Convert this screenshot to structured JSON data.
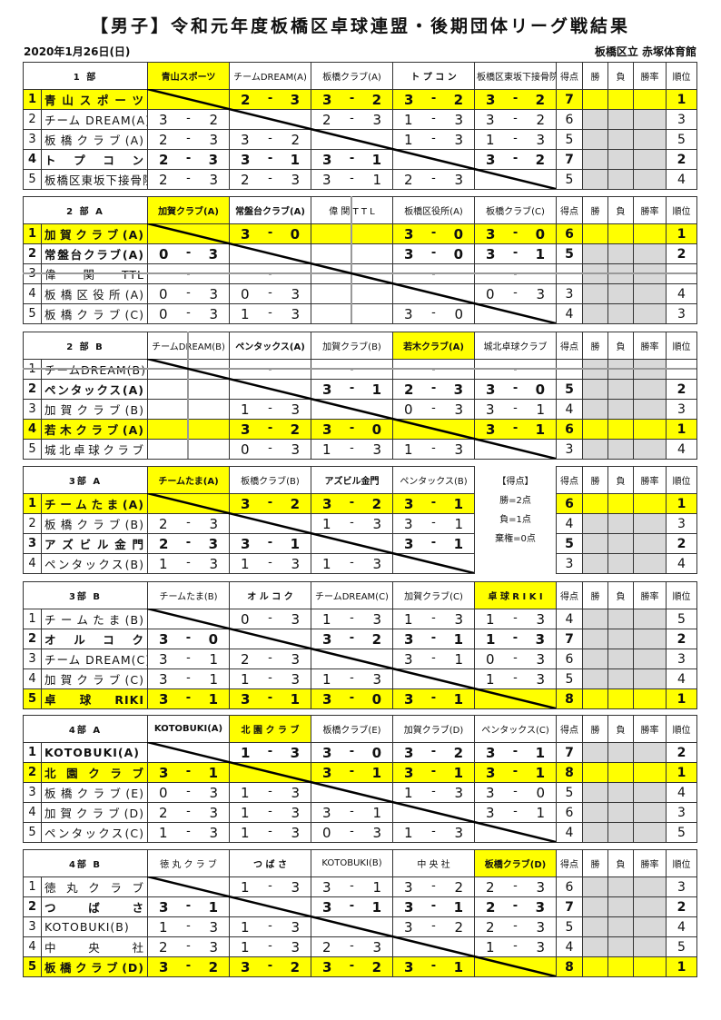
{
  "title": "【男子】令和元年度板橋区卓球連盟・後期団体リーグ戦結果",
  "date": "2020年1月26日(日)",
  "venue": "板橋区立 赤塚体育館",
  "score_separator": "-",
  "stat_headers": [
    "得点",
    "勝",
    "負",
    "勝率",
    "順位"
  ],
  "colors": {
    "highlight": "#ffff00",
    "gray_cell": "#d9d9d9",
    "strike_line": "#999999"
  },
  "legend": {
    "title": "【得点】",
    "lines": [
      "勝=2点",
      "負=1点",
      "棄権=0点"
    ]
  },
  "divisions": [
    {
      "title": "1 部",
      "headers": [
        "青山スポーツ",
        "チームDREAM(A)",
        "板橋クラブ(A)",
        "ト プ コ ン",
        "板橋区東坂下接骨院"
      ],
      "rows": [
        {
          "num": "1",
          "name": "青山スポーツ",
          "scores": [
            null,
            [
              2,
              3
            ],
            [
              3,
              2
            ],
            [
              3,
              2
            ],
            [
              3,
              2
            ]
          ],
          "points": "7",
          "rank": "1",
          "highlight": true,
          "bold": true
        },
        {
          "num": "2",
          "name": "チーム DREAM(A)",
          "scores": [
            [
              3,
              2
            ],
            null,
            [
              2,
              3
            ],
            [
              1,
              3
            ],
            [
              3,
              2
            ]
          ],
          "points": "6",
          "rank": "3"
        },
        {
          "num": "3",
          "name": "板橋クラブ(A)",
          "scores": [
            [
              2,
              3
            ],
            [
              3,
              2
            ],
            null,
            [
              1,
              3
            ],
            [
              1,
              3
            ]
          ],
          "points": "5",
          "rank": "5"
        },
        {
          "num": "4",
          "name": "トプコン",
          "scores": [
            [
              2,
              3
            ],
            [
              3,
              1
            ],
            [
              3,
              1
            ],
            null,
            [
              3,
              2
            ]
          ],
          "points": "7",
          "rank": "2",
          "bold": true
        },
        {
          "num": "5",
          "name": "板橋区東坂下接骨院",
          "scores": [
            [
              2,
              3
            ],
            [
              2,
              3
            ],
            [
              3,
              1
            ],
            [
              2,
              3
            ],
            null
          ],
          "points": "5",
          "rank": "4"
        }
      ]
    },
    {
      "title": "2 部 A",
      "headers": [
        "加賀クラブ(A)",
        "常盤台クラブ(A)",
        "偉 関 T T L",
        "板橋区役所(A)",
        "板橋クラブ(C)"
      ],
      "rows": [
        {
          "num": "1",
          "name": "加賀クラブ(A)",
          "scores": [
            null,
            [
              3,
              0
            ],
            "",
            [
              3,
              0
            ],
            [
              3,
              0
            ]
          ],
          "points": "6",
          "rank": "1",
          "highlight": true,
          "bold": true
        },
        {
          "num": "2",
          "name": "常盤台クラブ(A)",
          "scores": [
            [
              0,
              3
            ],
            null,
            "",
            [
              3,
              0
            ],
            [
              3,
              1
            ]
          ],
          "points": "5",
          "rank": "2",
          "bold": true
        },
        {
          "num": "3",
          "name": "偉関TTL",
          "scores": [
            "-",
            "-",
            null,
            "-",
            "-"
          ],
          "points": "",
          "rank": "",
          "withdrawn": true
        },
        {
          "num": "4",
          "name": "板橋区役所(A)",
          "scores": [
            [
              0,
              3
            ],
            [
              0,
              3
            ],
            "",
            null,
            [
              0,
              3
            ]
          ],
          "points": "3",
          "rank": "4"
        },
        {
          "num": "5",
          "name": "板橋クラブ(C)",
          "scores": [
            [
              0,
              3
            ],
            [
              1,
              3
            ],
            "",
            [
              3,
              0
            ],
            null
          ],
          "points": "4",
          "rank": "3"
        }
      ]
    },
    {
      "title": "2 部 B",
      "headers": [
        "チームDREAM(B)",
        "ペンタックス(A)",
        "加賀クラブ(B)",
        "若木クラブ(A)",
        "城北卓球クラブ"
      ],
      "rows": [
        {
          "num": "1",
          "name": "チームDREAM(B)",
          "scores": [
            null,
            "-",
            "-",
            "-",
            "-"
          ],
          "points": "",
          "rank": "",
          "withdrawn": true
        },
        {
          "num": "2",
          "name": "ペンタックス(A)",
          "scores": [
            "",
            null,
            [
              3,
              1
            ],
            [
              2,
              3
            ],
            [
              3,
              0
            ]
          ],
          "points": "5",
          "rank": "2",
          "bold": true
        },
        {
          "num": "3",
          "name": "加賀クラブ(B)",
          "scores": [
            "",
            [
              1,
              3
            ],
            null,
            [
              0,
              3
            ],
            [
              3,
              1
            ]
          ],
          "points": "4",
          "rank": "3"
        },
        {
          "num": "4",
          "name": "若木クラブ(A)",
          "scores": [
            "",
            [
              3,
              2
            ],
            [
              3,
              0
            ],
            null,
            [
              3,
              1
            ]
          ],
          "points": "6",
          "rank": "1",
          "highlight": true,
          "bold": true
        },
        {
          "num": "5",
          "name": "城北卓球クラブ",
          "scores": [
            "",
            [
              0,
              3
            ],
            [
              1,
              3
            ],
            [
              1,
              3
            ],
            null
          ],
          "points": "3",
          "rank": "4"
        }
      ]
    },
    {
      "title": "3部 A",
      "has_legend": true,
      "headers": [
        "チームたま(A)",
        "板橋クラブ(B)",
        "アズビル金門",
        "ペンタックス(B)"
      ],
      "rows": [
        {
          "num": "1",
          "name": "チームたま(A)",
          "scores": [
            null,
            [
              3,
              2
            ],
            [
              3,
              2
            ],
            [
              3,
              1
            ]
          ],
          "points": "6",
          "rank": "1",
          "highlight": true,
          "bold": true
        },
        {
          "num": "2",
          "name": "板橋クラブ(B)",
          "scores": [
            [
              2,
              3
            ],
            null,
            [
              1,
              3
            ],
            [
              3,
              1
            ]
          ],
          "points": "4",
          "rank": "3"
        },
        {
          "num": "3",
          "name": "アズビル金門",
          "scores": [
            [
              2,
              3
            ],
            [
              3,
              1
            ],
            null,
            [
              3,
              1
            ]
          ],
          "points": "5",
          "rank": "2",
          "bold": true
        },
        {
          "num": "4",
          "name": "ペンタックス(B)",
          "scores": [
            [
              1,
              3
            ],
            [
              1,
              3
            ],
            [
              1,
              3
            ],
            null
          ],
          "points": "3",
          "rank": "4"
        }
      ]
    },
    {
      "title": "3部 B",
      "headers": [
        "チームたま(B)",
        "オ ル コ ク",
        "チームDREAM(C)",
        "加賀クラブ(C)",
        "卓 球 R I K I"
      ],
      "rows": [
        {
          "num": "1",
          "name": "チームたま(B)",
          "scores": [
            null,
            [
              0,
              3
            ],
            [
              1,
              3
            ],
            [
              1,
              3
            ],
            [
              1,
              3
            ]
          ],
          "points": "4",
          "rank": "5"
        },
        {
          "num": "2",
          "name": "オルコク",
          "scores": [
            [
              3,
              0
            ],
            null,
            [
              3,
              2
            ],
            [
              3,
              1
            ],
            [
              1,
              3
            ]
          ],
          "points": "7",
          "rank": "2",
          "bold": true
        },
        {
          "num": "3",
          "name": "チーム DREAM(C)",
          "scores": [
            [
              3,
              1
            ],
            [
              2,
              3
            ],
            null,
            [
              3,
              1
            ],
            [
              0,
              3
            ]
          ],
          "points": "6",
          "rank": "3"
        },
        {
          "num": "4",
          "name": "加賀クラブ(C)",
          "scores": [
            [
              3,
              1
            ],
            [
              1,
              3
            ],
            [
              1,
              3
            ],
            null,
            [
              1,
              3
            ]
          ],
          "points": "5",
          "rank": "4"
        },
        {
          "num": "5",
          "name": "卓球RIKI",
          "scores": [
            [
              3,
              1
            ],
            [
              3,
              1
            ],
            [
              3,
              0
            ],
            [
              3,
              1
            ],
            null
          ],
          "points": "8",
          "rank": "1",
          "highlight": true,
          "bold": true
        }
      ]
    },
    {
      "title": "4部 A",
      "headers": [
        "KOTOBUKI(A)",
        "北 園 ク ラ ブ",
        "板橋クラブ(E)",
        "加賀クラブ(D)",
        "ペンタックス(C)"
      ],
      "rows": [
        {
          "num": "1",
          "name": "KOTOBUKI(A)",
          "scores": [
            null,
            [
              1,
              3
            ],
            [
              3,
              0
            ],
            [
              3,
              2
            ],
            [
              3,
              1
            ]
          ],
          "points": "7",
          "rank": "2",
          "bold": true
        },
        {
          "num": "2",
          "name": "北園クラブ",
          "scores": [
            [
              3,
              1
            ],
            null,
            [
              3,
              1
            ],
            [
              3,
              1
            ],
            [
              3,
              1
            ]
          ],
          "points": "8",
          "rank": "1",
          "highlight": true,
          "bold": true
        },
        {
          "num": "3",
          "name": "板橋クラブ(E)",
          "scores": [
            [
              0,
              3
            ],
            [
              1,
              3
            ],
            null,
            [
              1,
              3
            ],
            [
              3,
              0
            ]
          ],
          "points": "5",
          "rank": "4"
        },
        {
          "num": "4",
          "name": "加賀クラブ(D)",
          "scores": [
            [
              2,
              3
            ],
            [
              1,
              3
            ],
            [
              3,
              1
            ],
            null,
            [
              3,
              1
            ]
          ],
          "points": "6",
          "rank": "3"
        },
        {
          "num": "5",
          "name": "ペンタックス(C)",
          "scores": [
            [
              1,
              3
            ],
            [
              1,
              3
            ],
            [
              0,
              3
            ],
            [
              1,
              3
            ],
            null
          ],
          "points": "4",
          "rank": "5"
        }
      ]
    },
    {
      "title": "4部 B",
      "headers": [
        "徳 丸 ク ラ ブ",
        "つ ば さ",
        "KOTOBUKI(B)",
        "中 央 社",
        "板橋クラブ(D)"
      ],
      "rows": [
        {
          "num": "1",
          "name": "徳丸クラブ",
          "scores": [
            null,
            [
              1,
              3
            ],
            [
              3,
              1
            ],
            [
              3,
              2
            ],
            [
              2,
              3
            ]
          ],
          "points": "6",
          "rank": "3"
        },
        {
          "num": "2",
          "name": "つばさ",
          "scores": [
            [
              3,
              1
            ],
            null,
            [
              3,
              1
            ],
            [
              3,
              1
            ],
            [
              2,
              3
            ]
          ],
          "points": "7",
          "rank": "2",
          "bold": true
        },
        {
          "num": "3",
          "name": "KOTOBUKI(B)",
          "scores": [
            [
              1,
              3
            ],
            [
              1,
              3
            ],
            null,
            [
              3,
              2
            ],
            [
              2,
              3
            ]
          ],
          "points": "5",
          "rank": "4"
        },
        {
          "num": "4",
          "name": "中央社",
          "scores": [
            [
              2,
              3
            ],
            [
              1,
              3
            ],
            [
              2,
              3
            ],
            null,
            [
              1,
              3
            ]
          ],
          "points": "4",
          "rank": "5"
        },
        {
          "num": "5",
          "name": "板橋クラブ(D)",
          "scores": [
            [
              3,
              2
            ],
            [
              3,
              2
            ],
            [
              3,
              2
            ],
            [
              3,
              1
            ],
            null
          ],
          "points": "8",
          "rank": "1",
          "highlight": true,
          "bold": true
        }
      ]
    }
  ]
}
